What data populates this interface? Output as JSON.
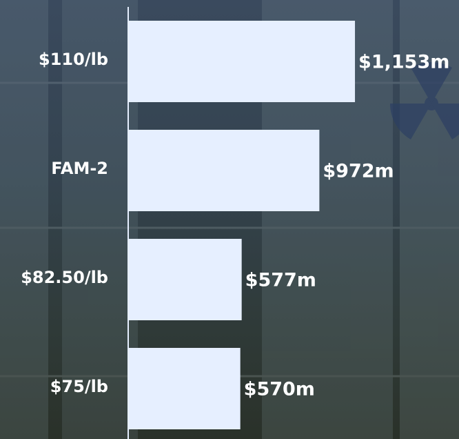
{
  "chart_data": {
    "type": "hbar",
    "categories": [
      "$110/lb",
      "FAM-2",
      "$82.50/lb",
      "$75/lb"
    ],
    "values": [
      1153,
      972,
      577,
      570
    ],
    "value_labels": [
      "$1,153m",
      "$972m",
      "$577m",
      "$570m"
    ],
    "color": "#e6efff",
    "xlim": [
      0,
      1300
    ]
  }
}
